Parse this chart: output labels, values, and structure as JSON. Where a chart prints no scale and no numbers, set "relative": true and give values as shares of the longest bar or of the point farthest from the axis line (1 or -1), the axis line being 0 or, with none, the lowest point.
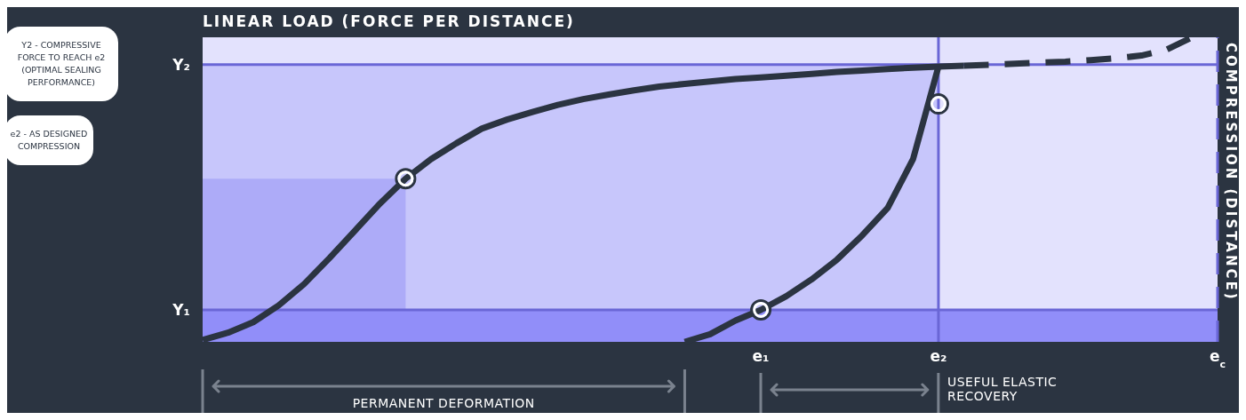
{
  "chart_data": {
    "type": "line",
    "ylabel": "LINEAR LOAD (FORCE PER DISTANCE)",
    "relative": true,
    "categories": [
      null,
      null,
      null,
      null,
      null,
      null,
      null,
      null,
      null,
      null,
      null,
      null,
      null,
      null,
      null,
      null,
      null,
      null,
      null,
      null,
      null,
      null,
      "e₁",
      null,
      null,
      null,
      null,
      null,
      null,
      "e₂",
      null,
      null,
      null,
      null,
      null,
      null,
      null,
      null,
      null,
      null,
      "e$_{c}$"
    ],
    "series": [
      {
        "type": "area",
        "color": "#c7c6fb",
        "values": [
          0.91,
          0.91,
          0.91,
          0.91,
          0.91,
          0.91,
          0.91,
          0.91,
          0.91,
          0.91,
          0.91,
          0.91,
          0.91,
          0.91,
          0.91,
          0.91,
          0.91,
          0.91,
          0.91,
          0.91,
          0.91,
          0.91,
          0.91,
          0.91,
          0.91,
          0.91,
          0.91,
          0.91,
          0.91,
          0.91,
          null,
          null,
          null,
          null,
          null,
          null,
          null,
          null,
          null,
          null,
          null
        ]
      },
      {
        "type": "area",
        "color": "#adabf8",
        "values": [
          0.536,
          0.536,
          0.536,
          0.536,
          0.536,
          0.536,
          0.536,
          0.536,
          0.536,
          null,
          null,
          null,
          null,
          null,
          null,
          null,
          null,
          null,
          null,
          null,
          null,
          null,
          null,
          null,
          null,
          null,
          null,
          null,
          null,
          null,
          null,
          null,
          null,
          null,
          null,
          null,
          null,
          null,
          null,
          null,
          null
        ]
      },
      {
        "color": "#2b3441",
        "line_style": "solid",
        "values": [
          0.006,
          0.03,
          0.065,
          0.12,
          0.19,
          0.275,
          0.365,
          0.455,
          0.536,
          0.6,
          0.652,
          0.7,
          0.73,
          0.755,
          0.778,
          0.797,
          0.812,
          0.826,
          0.838,
          0.847,
          0.855,
          0.863,
          0.868,
          0.874,
          0.88,
          0.886,
          0.891,
          0.896,
          0.9,
          0.904,
          0.907,
          null,
          null,
          null,
          null,
          null,
          null,
          null,
          null,
          null,
          null
        ]
      },
      {
        "color": "#2b3441",
        "line_style": "dashed",
        "values": [
          null,
          null,
          null,
          null,
          null,
          null,
          null,
          null,
          null,
          null,
          null,
          null,
          null,
          null,
          null,
          null,
          null,
          null,
          null,
          null,
          null,
          null,
          null,
          null,
          null,
          null,
          null,
          null,
          null,
          null,
          0.907,
          0.91,
          0.913,
          0.917,
          0.92,
          0.925,
          0.931,
          0.94,
          0.96,
          1,
          null
        ]
      },
      {
        "color": "#2b3441",
        "line_style": "solid",
        "values": [
          null,
          null,
          null,
          null,
          null,
          null,
          null,
          null,
          null,
          null,
          null,
          null,
          null,
          null,
          null,
          null,
          null,
          null,
          null,
          0,
          0.025,
          0.07,
          0.105,
          0.15,
          0.205,
          0.27,
          0.35,
          0.44,
          0.6,
          0.904,
          null,
          null,
          null,
          null,
          null,
          null,
          null,
          null,
          null,
          null,
          null
        ]
      },
      {
        "type": "scatter",
        "marker": "circle",
        "color": "#2b3441",
        "values": [
          null,
          null,
          null,
          null,
          null,
          null,
          null,
          null,
          0.536,
          null,
          null,
          null,
          null,
          null,
          null,
          null,
          null,
          null,
          null,
          null,
          null,
          null,
          0.105,
          null,
          null,
          null,
          null,
          null,
          null,
          0.781,
          null,
          null,
          null,
          null,
          null,
          null,
          null,
          null,
          null,
          null,
          null
        ]
      }
    ],
    "bands": [
      {
        "axis": "y",
        "from": 0,
        "to": 0.105,
        "color": "#918ef9"
      }
    ],
    "ref_lines": [
      {
        "axis": "y",
        "value": 0.105,
        "label": "Y₁",
        "color": "#6a66d6",
        "line_style": "solid"
      },
      {
        "axis": "y",
        "value": 0.91,
        "label": "Y₂",
        "color": "#6a66d6",
        "line_style": "solid"
      },
      {
        "axis": "x",
        "value": "e₂",
        "color": "#6a66d6",
        "line_style": "solid"
      },
      {
        "axis": "x",
        "value": "e$_{c}$",
        "color": "#6a66d6",
        "line_style": "dashed"
      }
    ],
    "annotations": [
      "Y2 - COMPRESSIVE FORCE TO REACH e2 (OPTIMAL SEALING PERFORMANCE)",
      "e2 - AS DESIGNED COMPRESSION",
      "PERMANENT DEFORMATION",
      "USEFUL ELASTIC RECOVERY",
      "COMPRESSION (DISTANCE)"
    ]
  }
}
